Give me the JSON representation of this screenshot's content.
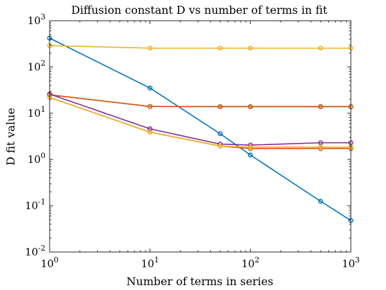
{
  "chart_data": {
    "type": "line",
    "title": "Diffusion constant D vs number of terms in fit",
    "xlabel": "Number of terms in series",
    "ylabel": "D fit value",
    "xscale": "log",
    "yscale": "log",
    "xlim": [
      1,
      1000
    ],
    "ylim": [
      0.01,
      1000
    ],
    "grid": false,
    "legend": "none",
    "x_ticks": [
      {
        "value": 1,
        "base": "10",
        "exp": "0"
      },
      {
        "value": 10,
        "base": "10",
        "exp": "1"
      },
      {
        "value": 100,
        "base": "10",
        "exp": "2"
      },
      {
        "value": 1000,
        "base": "10",
        "exp": "3"
      }
    ],
    "y_ticks": [
      {
        "value": 0.01,
        "base": "10",
        "exp": "-2"
      },
      {
        "value": 0.1,
        "base": "10",
        "exp": "-1"
      },
      {
        "value": 1,
        "base": "10",
        "exp": "0"
      },
      {
        "value": 10,
        "base": "10",
        "exp": "1"
      },
      {
        "value": 100,
        "base": "10",
        "exp": "2"
      },
      {
        "value": 1000,
        "base": "10",
        "exp": "3"
      }
    ],
    "x": [
      1,
      10,
      50,
      100,
      500,
      1000
    ],
    "series": [
      {
        "color": "#0072BD",
        "values": [
          420,
          35,
          3.6,
          1.25,
          0.125,
          0.048
        ]
      },
      {
        "color": "#EDB120",
        "values": [
          290,
          255,
          255,
          255,
          255,
          255
        ]
      },
      {
        "color": "#77AC30",
        "values": [
          25,
          14,
          14,
          14,
          14,
          14
        ]
      },
      {
        "color": "#D95319",
        "values": [
          25,
          14,
          13.8,
          13.8,
          13.8,
          13.8
        ]
      },
      {
        "color": "#7E2F8E",
        "values": [
          26,
          4.6,
          2.15,
          2.05,
          2.3,
          2.3
        ]
      },
      {
        "color": "#D95319",
        "values": [
          22,
          3.9,
          1.95,
          1.72,
          1.72,
          1.72
        ]
      },
      {
        "color": "#EDB120",
        "values": [
          22,
          3.9,
          1.95,
          1.85,
          1.85,
          1.85
        ]
      }
    ]
  }
}
